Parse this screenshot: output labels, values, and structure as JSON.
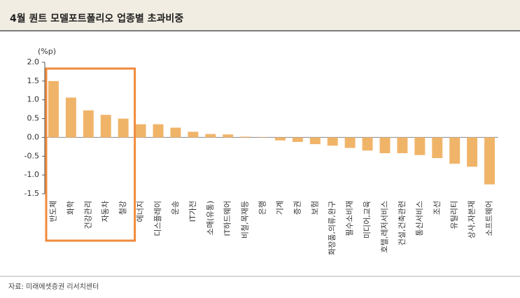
{
  "chart_data": {
    "type": "bar",
    "title": "4월 퀀트 모델포트폴리오 업종별 초과비중",
    "y_unit": "(%p)",
    "source": "자료: 미래에셋증권 리서치센터",
    "categories": [
      "반도체",
      "화학",
      "건강관리",
      "자동차",
      "철강",
      "에너지",
      "디스플레이",
      "운송",
      "IT가전",
      "소매(유통)",
      "IT하드웨어",
      "비철,목재등",
      "은행",
      "기계",
      "증권",
      "보험",
      "화장품,의류,완구",
      "필수소비재",
      "미디어,교육",
      "호텔,레저서비스",
      "건설,건축관련",
      "통신서비스",
      "조선",
      "유틸리티",
      "상사,자본재",
      "소프트웨어"
    ],
    "values": [
      1.5,
      1.06,
      0.72,
      0.6,
      0.5,
      0.35,
      0.35,
      0.26,
      0.15,
      0.09,
      0.08,
      0.02,
      -0.01,
      -0.08,
      -0.12,
      -0.18,
      -0.22,
      -0.28,
      -0.35,
      -0.42,
      -0.42,
      -0.47,
      -0.55,
      -0.7,
      -0.78,
      -1.25
    ],
    "color": "#f0b469",
    "ylim": [
      -1.5,
      2.0
    ],
    "yticks": [
      {
        "value": 2,
        "label": "2.0"
      },
      1.5,
      {
        "value": 1,
        "label": "1.0"
      },
      0.5,
      {
        "value": 0,
        "label": "0.0"
      },
      -0.5,
      {
        "value": -1,
        "label": "-1.0"
      },
      -1.5
    ],
    "grid": false
  }
}
